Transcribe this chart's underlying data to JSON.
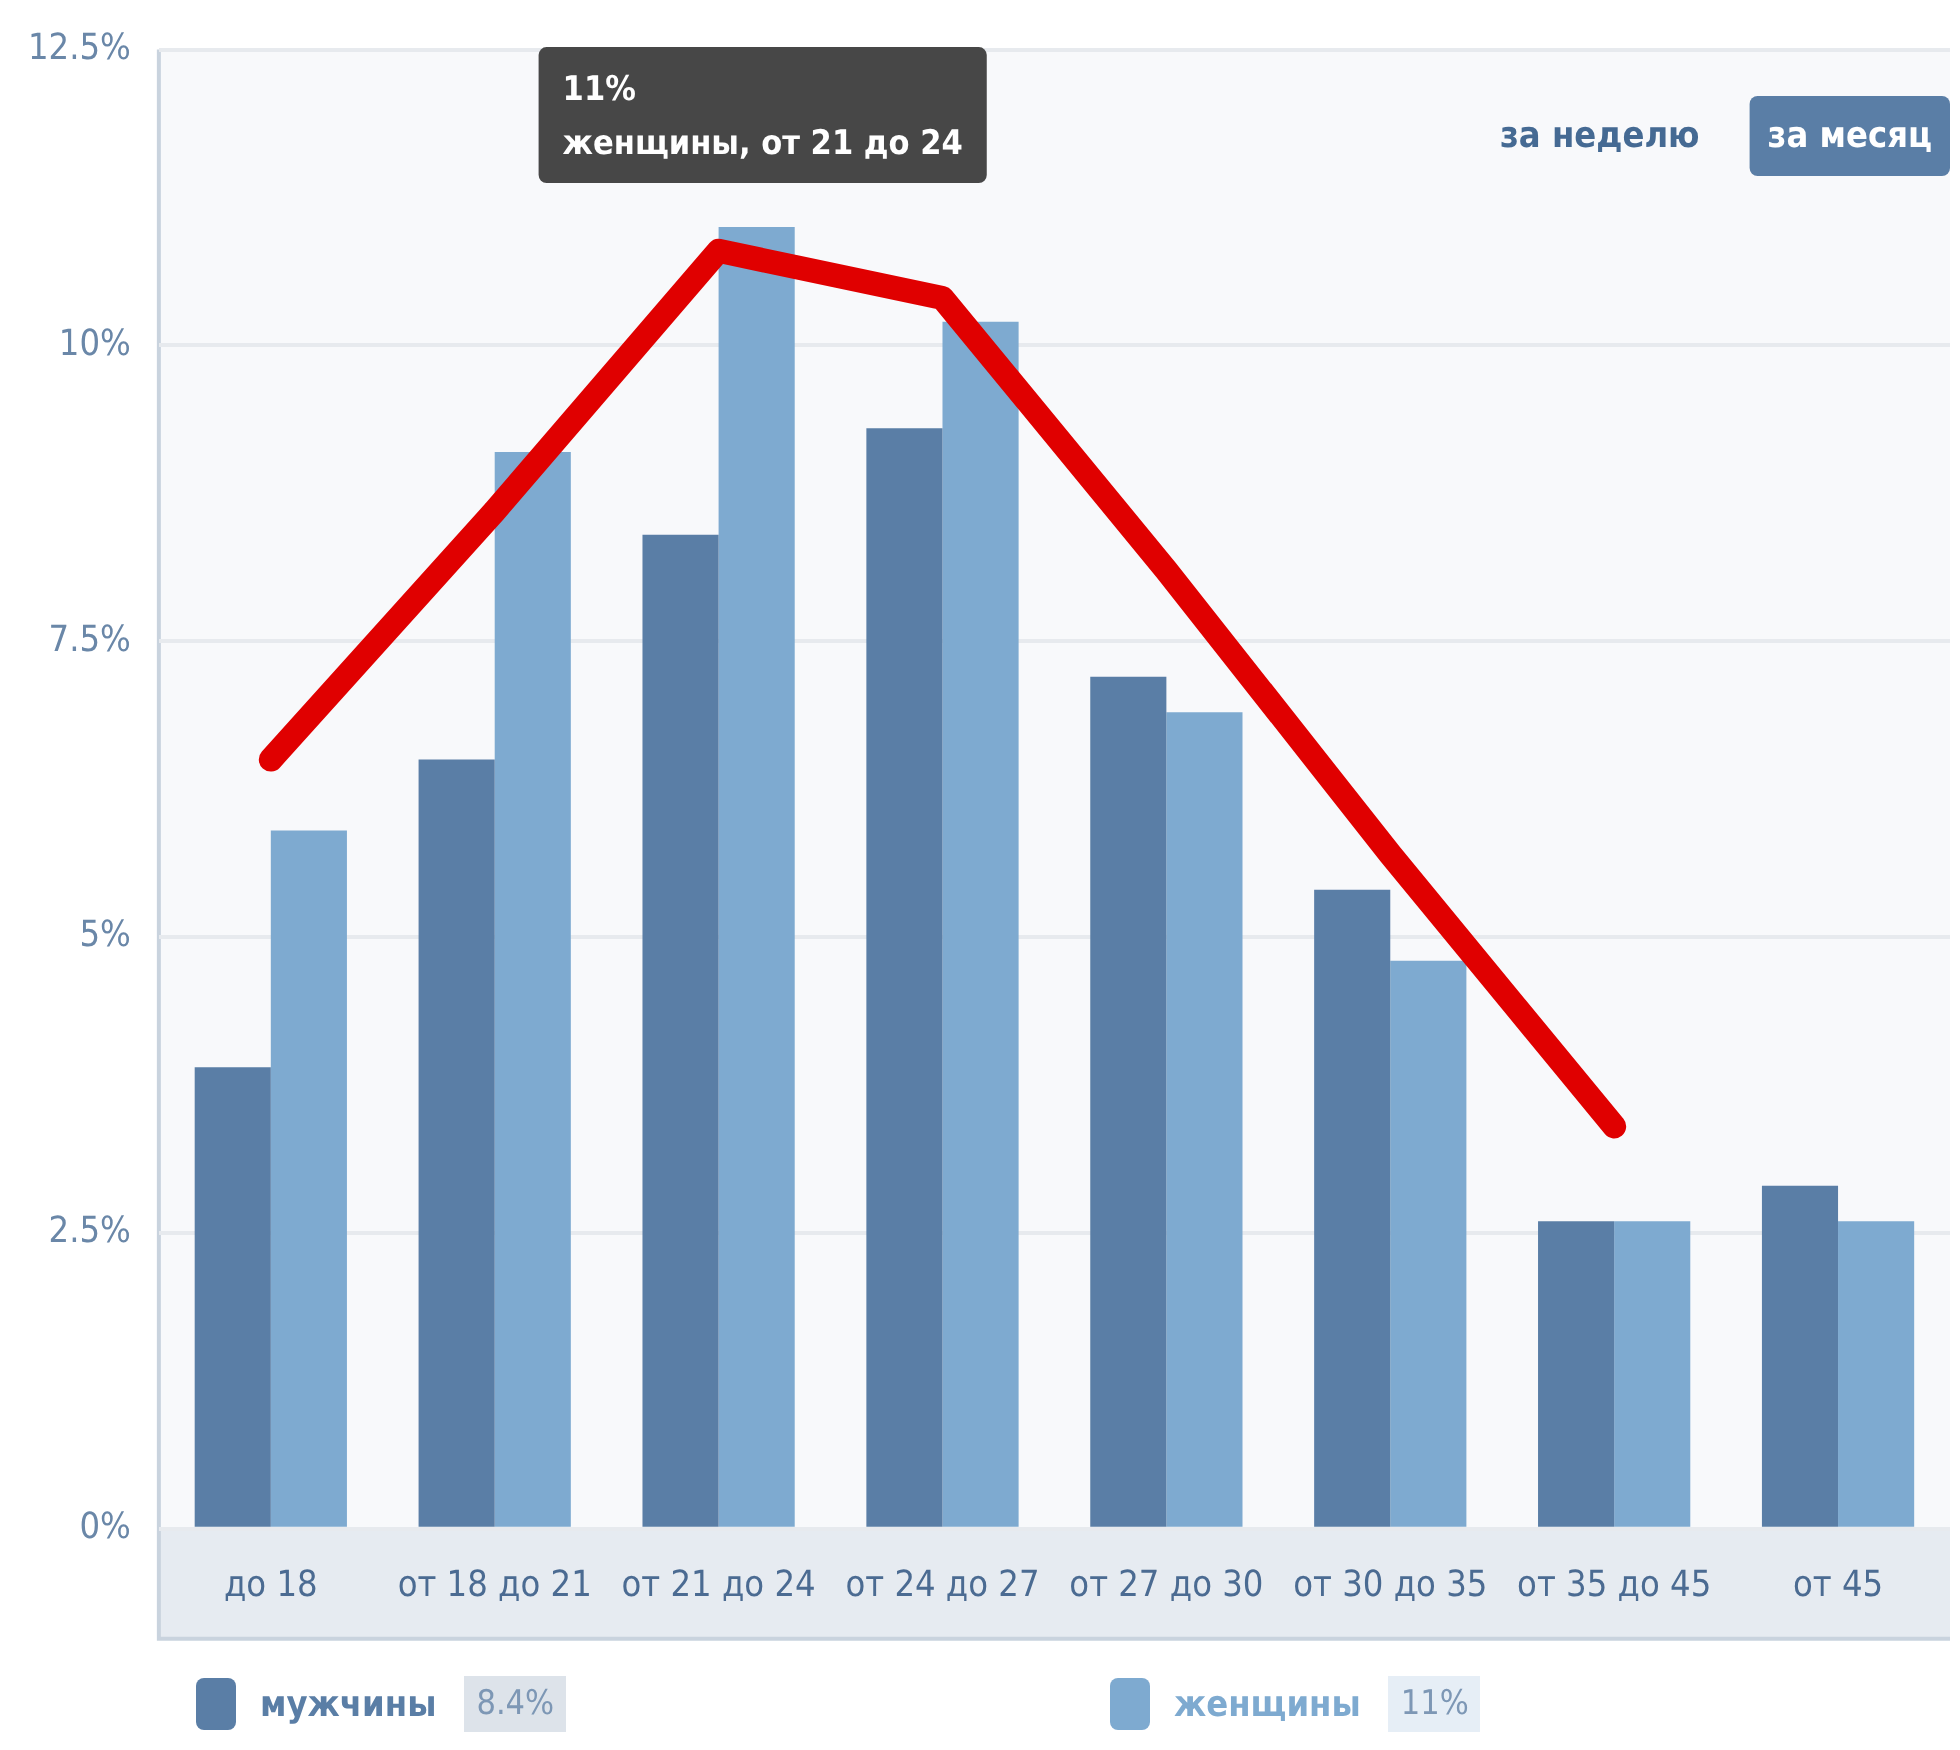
{
  "chart_data": {
    "type": "bar",
    "categories": [
      "до 18",
      "от 18 до 21",
      "от 21 до 24",
      "от 24 до 27",
      "от 27 до 30",
      "от 30 до 35",
      "от 35 до 45",
      "от 45"
    ],
    "series": [
      {
        "name": "мужчины",
        "color": "#5a7ea6",
        "values": [
          3.9,
          6.5,
          8.4,
          9.3,
          7.2,
          5.4,
          2.6,
          2.9
        ]
      },
      {
        "name": "женщины",
        "color": "#7eaad0",
        "values": [
          5.9,
          9.1,
          11.0,
          10.2,
          6.9,
          4.8,
          2.6,
          2.6
        ]
      },
      {
        "type": "line",
        "color": "#e00000",
        "values": [
          6.5,
          8.6,
          10.8,
          10.4,
          8.1,
          5.7,
          3.4,
          null
        ]
      }
    ],
    "ylim": [
      0,
      12.5
    ],
    "yticks": [
      {
        "value": 0,
        "label": "0%"
      },
      {
        "value": 2.5,
        "label": "2.5%"
      },
      {
        "value": 5,
        "label": "5%"
      },
      {
        "value": 7.5,
        "label": "7.5%"
      },
      {
        "value": 10,
        "label": "10%"
      },
      {
        "value": 12.5,
        "label": "12.5%"
      }
    ],
    "grid": "y",
    "legend": "bottom",
    "annotations": [
      {
        "text": "11%\nженщины, от 21 до 24",
        "x": "от 21 до 24",
        "y": 11
      },
      "за неделю",
      "за месяц",
      "8.4%",
      "11%"
    ]
  }
}
